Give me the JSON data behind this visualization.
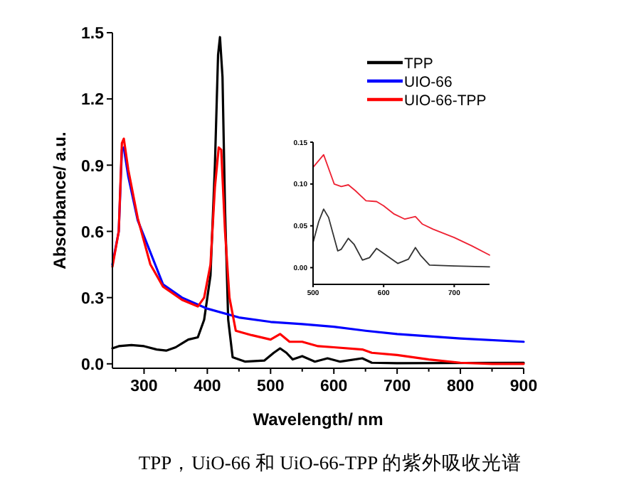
{
  "chart_data": [
    {
      "type": "line",
      "xlabel": "Wavelength/ nm",
      "ylabel": "Absorbance/ a.u.",
      "annotations": [
        "TPP，UiO-66 和 UiO-66-TPP 的紫外吸收光谱"
      ],
      "legend": "top right",
      "xlim": [
        250,
        900
      ],
      "ylim": [
        -0.02,
        1.5
      ],
      "xticks": [
        300,
        400,
        500,
        600,
        700,
        800,
        900,
        {
          "value": 350,
          "label": null
        },
        {
          "value": 450,
          "label": null
        },
        {
          "value": 550,
          "label": null
        },
        {
          "value": 650,
          "label": null
        },
        {
          "value": 750,
          "label": null
        },
        {
          "value": 850,
          "label": null
        }
      ],
      "yticks": [
        {
          "value": 0,
          "label": "0.0"
        },
        {
          "value": 0.3,
          "label": "0.3"
        },
        {
          "value": 0.6,
          "label": "0.6"
        },
        {
          "value": 0.9,
          "label": "0.9"
        },
        {
          "value": 1.2,
          "label": "1.2"
        },
        {
          "value": 1.5,
          "label": "1.5"
        }
      ],
      "series": [
        {
          "name": "TPP",
          "color": "#000000",
          "x": [
            250,
            260,
            280,
            300,
            320,
            335,
            350,
            370,
            385,
            395,
            405,
            412,
            417,
            420,
            424,
            428,
            433,
            440,
            460,
            490,
            505,
            515,
            525,
            535,
            550,
            570,
            590,
            610,
            645,
            660,
            700,
            900
          ],
          "values": [
            0.07,
            0.08,
            0.085,
            0.08,
            0.065,
            0.06,
            0.075,
            0.11,
            0.12,
            0.2,
            0.4,
            0.9,
            1.4,
            1.48,
            1.3,
            0.7,
            0.2,
            0.03,
            0.01,
            0.015,
            0.05,
            0.07,
            0.05,
            0.02,
            0.035,
            0.01,
            0.025,
            0.01,
            0.025,
            0.005,
            0.003,
            0.005
          ]
        },
        {
          "name": "UIO-66",
          "color": "#0000ff",
          "x": [
            250,
            260,
            265,
            268,
            275,
            290,
            330,
            360,
            400,
            450,
            500,
            550,
            600,
            650,
            700,
            800,
            900
          ],
          "values": [
            0.45,
            0.6,
            0.97,
            0.98,
            0.85,
            0.65,
            0.36,
            0.3,
            0.25,
            0.21,
            0.19,
            0.18,
            0.168,
            0.15,
            0.135,
            0.115,
            0.1
          ]
        },
        {
          "name": "UIO-66-TPP",
          "color": "#ff0000",
          "x": [
            250,
            260,
            265,
            268,
            275,
            290,
            310,
            330,
            360,
            385,
            395,
            405,
            412,
            418,
            422,
            428,
            435,
            445,
            470,
            500,
            515,
            530,
            550,
            575,
            600,
            645,
            660,
            700,
            750,
            800,
            850,
            900
          ],
          "values": [
            0.44,
            0.6,
            1.0,
            1.02,
            0.88,
            0.66,
            0.45,
            0.35,
            0.29,
            0.26,
            0.3,
            0.45,
            0.8,
            0.98,
            0.97,
            0.6,
            0.3,
            0.15,
            0.13,
            0.11,
            0.135,
            0.1,
            0.1,
            0.08,
            0.075,
            0.065,
            0.05,
            0.04,
            0.02,
            0.005,
            0.0,
            0.0
          ]
        }
      ]
    },
    {
      "type": "line",
      "xlim": [
        500,
        750
      ],
      "ylim": [
        -0.02,
        0.15
      ],
      "xticks": [
        500,
        600,
        700
      ],
      "yticks": [
        {
          "value": 0,
          "label": "0.00"
        },
        {
          "value": 0.05,
          "label": "0.05"
        },
        {
          "value": 0.1,
          "label": "0.10"
        },
        {
          "value": 0.15,
          "label": "0.15"
        }
      ],
      "series": [
        {
          "color": "#333333",
          "x": [
            500,
            508,
            515,
            522,
            535,
            540,
            550,
            558,
            570,
            580,
            590,
            600,
            620,
            635,
            645,
            652,
            665,
            700,
            750
          ],
          "values": [
            0.03,
            0.055,
            0.07,
            0.06,
            0.02,
            0.022,
            0.035,
            0.028,
            0.009,
            0.012,
            0.023,
            0.017,
            0.005,
            0.01,
            0.024,
            0.015,
            0.003,
            0.002,
            0.001
          ]
        },
        {
          "color": "#ee2233",
          "x": [
            500,
            515,
            530,
            540,
            550,
            560,
            575,
            590,
            600,
            615,
            630,
            645,
            655,
            670,
            700,
            725,
            750
          ],
          "values": [
            0.12,
            0.135,
            0.1,
            0.097,
            0.099,
            0.092,
            0.08,
            0.079,
            0.074,
            0.064,
            0.058,
            0.061,
            0.052,
            0.046,
            0.036,
            0.026,
            0.015
          ]
        }
      ]
    }
  ]
}
